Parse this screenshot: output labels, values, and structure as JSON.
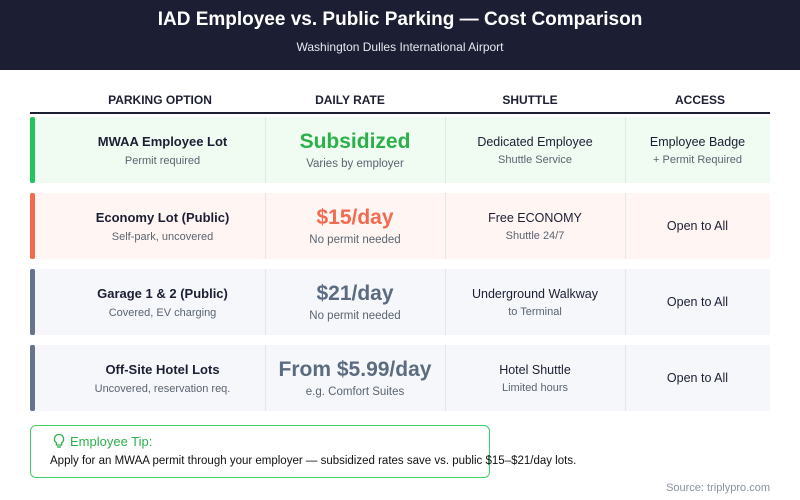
{
  "header": {
    "title": "IAD Employee vs. Public Parking — Cost Comparison",
    "subtitle": "Washington Dulles International Airport"
  },
  "table": {
    "columns": [
      "PARKING OPTION",
      "DAILY RATE",
      "SHUTTLE",
      "ACCESS"
    ],
    "rows": [
      {
        "name": "MWAA Employee Lot",
        "note": "Permit required",
        "rate": "Subsidized",
        "rate_note": "Varies by employer",
        "shuttle": [
          "Dedicated Employee",
          "Shuttle Service"
        ],
        "access": [
          "Employee Badge",
          "+ Permit Required"
        ]
      },
      {
        "name": "Economy Lot (Public)",
        "note": "Self-park, uncovered",
        "rate": "$15/day",
        "rate_note": "No permit needed",
        "shuttle": [
          "Free ECONOMY",
          "Shuttle 24/7"
        ],
        "access": [
          "Open to All"
        ]
      },
      {
        "name": "Garage 1 & 2 (Public)",
        "note": "Covered, EV charging",
        "rate": "$21/day",
        "rate_note": "No permit needed",
        "shuttle": [
          "Underground Walkway",
          "to Terminal"
        ],
        "access": [
          "Open to All"
        ]
      },
      {
        "name": "Off-Site Hotel Lots",
        "note": "Uncovered, reservation req.",
        "rate": "From $5.99/day",
        "rate_note": "e.g. Comfort Suites",
        "shuttle": [
          "Hotel Shuttle",
          "Limited hours"
        ],
        "access": [
          "Open to All"
        ]
      }
    ]
  },
  "tip": {
    "title": "Employee Tip:",
    "text": "Apply for an MWAA permit through your employer — subsidized rates save vs. public $15–$21/day lots."
  },
  "source": "Source: triplypro.com"
}
